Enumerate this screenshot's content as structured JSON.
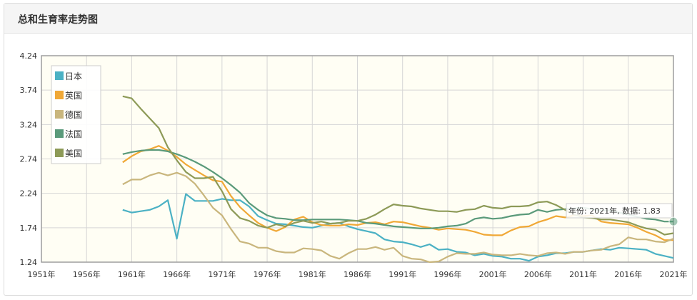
{
  "panel": {
    "title": "总和生育率走势图"
  },
  "chart_data": {
    "type": "line",
    "ylim": [
      1.24,
      4.24
    ],
    "xlim": [
      1951,
      2021
    ],
    "yticks": [
      1.24,
      1.74,
      2.24,
      2.74,
      3.24,
      3.74,
      4.24
    ],
    "xticks": [
      1951,
      1956,
      1961,
      1966,
      1971,
      1976,
      1981,
      1986,
      1991,
      1996,
      2001,
      2006,
      2011,
      2016,
      2021
    ],
    "ytick_labels": [
      "1.24",
      "1.74",
      "2.24",
      "2.74",
      "3.24",
      "3.74",
      "4.24"
    ],
    "xtick_labels": [
      "1951年",
      "1956年",
      "1961年",
      "1966年",
      "1971年",
      "1976年",
      "1981年",
      "1986年",
      "1991年",
      "1996年",
      "2001年",
      "2006年",
      "2011年",
      "2016年",
      "2021年"
    ],
    "grid": true,
    "legend_position": "top-left",
    "series": [
      {
        "name": "日本",
        "color": "#4bb1c4",
        "x": [
          1960,
          1961,
          1962,
          1963,
          1964,
          1965,
          1966,
          1967,
          1968,
          1969,
          1970,
          1971,
          1972,
          1973,
          1974,
          1975,
          1976,
          1977,
          1978,
          1979,
          1980,
          1981,
          1982,
          1983,
          1984,
          1985,
          1986,
          1987,
          1988,
          1989,
          1990,
          1991,
          1992,
          1993,
          1994,
          1995,
          1996,
          1997,
          1998,
          1999,
          2000,
          2001,
          2002,
          2003,
          2004,
          2005,
          2006,
          2007,
          2008,
          2009,
          2010,
          2011,
          2012,
          2013,
          2014,
          2015,
          2016,
          2017,
          2018,
          2019,
          2020,
          2021
        ],
        "values": [
          2.0,
          1.96,
          1.98,
          2.0,
          2.05,
          2.14,
          1.58,
          2.23,
          2.13,
          2.13,
          2.13,
          2.16,
          2.14,
          2.14,
          2.05,
          1.91,
          1.85,
          1.8,
          1.79,
          1.77,
          1.75,
          1.74,
          1.77,
          1.8,
          1.81,
          1.76,
          1.72,
          1.69,
          1.66,
          1.57,
          1.54,
          1.53,
          1.5,
          1.46,
          1.5,
          1.42,
          1.43,
          1.39,
          1.38,
          1.34,
          1.36,
          1.33,
          1.32,
          1.29,
          1.29,
          1.26,
          1.32,
          1.34,
          1.37,
          1.37,
          1.39,
          1.39,
          1.41,
          1.43,
          1.42,
          1.45,
          1.44,
          1.43,
          1.42,
          1.36,
          1.33,
          1.3
        ]
      },
      {
        "name": "英国",
        "color": "#f0a836",
        "x": [
          1960,
          1961,
          1962,
          1963,
          1964,
          1965,
          1966,
          1967,
          1968,
          1969,
          1970,
          1971,
          1972,
          1973,
          1974,
          1975,
          1976,
          1977,
          1978,
          1979,
          1980,
          1981,
          1982,
          1983,
          1984,
          1985,
          1986,
          1987,
          1988,
          1989,
          1990,
          1991,
          1992,
          1993,
          1994,
          1995,
          1996,
          1997,
          1998,
          1999,
          2000,
          2001,
          2002,
          2003,
          2004,
          2005,
          2006,
          2007,
          2008,
          2009,
          2010,
          2011,
          2012,
          2013,
          2014,
          2015,
          2016,
          2017,
          2018,
          2019,
          2020,
          2021
        ],
        "values": [
          2.69,
          2.78,
          2.85,
          2.88,
          2.93,
          2.86,
          2.77,
          2.66,
          2.58,
          2.5,
          2.43,
          2.41,
          2.2,
          2.04,
          1.92,
          1.81,
          1.74,
          1.69,
          1.75,
          1.86,
          1.9,
          1.82,
          1.78,
          1.77,
          1.77,
          1.79,
          1.78,
          1.81,
          1.82,
          1.79,
          1.83,
          1.82,
          1.79,
          1.76,
          1.74,
          1.71,
          1.73,
          1.72,
          1.71,
          1.68,
          1.64,
          1.63,
          1.63,
          1.7,
          1.75,
          1.76,
          1.82,
          1.86,
          1.91,
          1.89,
          1.92,
          1.91,
          1.92,
          1.83,
          1.81,
          1.8,
          1.79,
          1.74,
          1.68,
          1.63,
          1.56,
          1.56
        ]
      },
      {
        "name": "德国",
        "color": "#c9b67d",
        "x": [
          1960,
          1961,
          1962,
          1963,
          1964,
          1965,
          1966,
          1967,
          1968,
          1969,
          1970,
          1971,
          1972,
          1973,
          1974,
          1975,
          1976,
          1977,
          1978,
          1979,
          1980,
          1981,
          1982,
          1983,
          1984,
          1985,
          1986,
          1987,
          1988,
          1989,
          1990,
          1991,
          1992,
          1993,
          1994,
          1995,
          1996,
          1997,
          1998,
          1999,
          2000,
          2001,
          2002,
          2003,
          2004,
          2005,
          2006,
          2007,
          2008,
          2009,
          2010,
          2011,
          2012,
          2013,
          2014,
          2015,
          2016,
          2017,
          2018,
          2019,
          2020,
          2021
        ],
        "values": [
          2.37,
          2.44,
          2.44,
          2.5,
          2.54,
          2.5,
          2.54,
          2.49,
          2.38,
          2.21,
          2.03,
          1.92,
          1.72,
          1.54,
          1.51,
          1.45,
          1.45,
          1.4,
          1.38,
          1.38,
          1.44,
          1.43,
          1.41,
          1.33,
          1.29,
          1.37,
          1.43,
          1.43,
          1.46,
          1.42,
          1.45,
          1.33,
          1.29,
          1.28,
          1.24,
          1.25,
          1.32,
          1.37,
          1.36,
          1.36,
          1.38,
          1.35,
          1.34,
          1.34,
          1.36,
          1.34,
          1.33,
          1.37,
          1.38,
          1.36,
          1.39,
          1.39,
          1.41,
          1.42,
          1.47,
          1.5,
          1.6,
          1.57,
          1.57,
          1.54,
          1.53,
          1.58
        ]
      },
      {
        "name": "法国",
        "color": "#5a9a7a",
        "x": [
          1960,
          1961,
          1962,
          1963,
          1964,
          1965,
          1966,
          1967,
          1968,
          1969,
          1970,
          1971,
          1972,
          1973,
          1974,
          1975,
          1976,
          1977,
          1978,
          1979,
          1980,
          1981,
          1982,
          1983,
          1984,
          1985,
          1986,
          1987,
          1988,
          1989,
          1990,
          1991,
          1992,
          1993,
          1994,
          1995,
          1996,
          1997,
          1998,
          1999,
          2000,
          2001,
          2002,
          2003,
          2004,
          2005,
          2006,
          2007,
          2008,
          2009,
          2010,
          2011,
          2012,
          2013,
          2014,
          2015,
          2016,
          2017,
          2018,
          2019,
          2020,
          2021
        ],
        "values": [
          2.81,
          2.84,
          2.86,
          2.87,
          2.87,
          2.85,
          2.81,
          2.76,
          2.7,
          2.63,
          2.55,
          2.46,
          2.36,
          2.25,
          2.1,
          2.0,
          1.92,
          1.88,
          1.87,
          1.85,
          1.85,
          1.86,
          1.86,
          1.86,
          1.86,
          1.85,
          1.84,
          1.81,
          1.8,
          1.78,
          1.76,
          1.75,
          1.74,
          1.73,
          1.73,
          1.74,
          1.76,
          1.77,
          1.8,
          1.87,
          1.89,
          1.87,
          1.88,
          1.91,
          1.93,
          1.94,
          2.0,
          1.97,
          2.0,
          2.01,
          2.02,
          2.03,
          2.01,
          1.99,
          1.99,
          1.96,
          1.93,
          1.9,
          1.87,
          1.86,
          1.83,
          1.83
        ]
      },
      {
        "name": "美国",
        "color": "#8d9a57",
        "x": [
          1960,
          1961,
          1962,
          1963,
          1964,
          1965,
          1966,
          1967,
          1968,
          1969,
          1970,
          1971,
          1972,
          1973,
          1974,
          1975,
          1976,
          1977,
          1978,
          1979,
          1980,
          1981,
          1982,
          1983,
          1984,
          1985,
          1986,
          1987,
          1988,
          1989,
          1990,
          1991,
          1992,
          1993,
          1994,
          1995,
          1996,
          1997,
          1998,
          1999,
          2000,
          2001,
          2002,
          2003,
          2004,
          2005,
          2006,
          2007,
          2008,
          2009,
          2010,
          2011,
          2012,
          2013,
          2014,
          2015,
          2016,
          2017,
          2018,
          2019,
          2020,
          2021
        ],
        "values": [
          3.65,
          3.62,
          3.47,
          3.33,
          3.19,
          2.91,
          2.72,
          2.55,
          2.46,
          2.46,
          2.48,
          2.27,
          2.01,
          1.88,
          1.84,
          1.77,
          1.74,
          1.79,
          1.76,
          1.81,
          1.84,
          1.81,
          1.83,
          1.8,
          1.81,
          1.84,
          1.84,
          1.87,
          1.93,
          2.01,
          2.08,
          2.06,
          2.05,
          2.02,
          2.0,
          1.98,
          1.98,
          1.97,
          2.0,
          2.01,
          2.06,
          2.03,
          2.02,
          2.05,
          2.05,
          2.06,
          2.11,
          2.12,
          2.07,
          2.0,
          1.93,
          1.89,
          1.88,
          1.86,
          1.86,
          1.84,
          1.82,
          1.77,
          1.73,
          1.71,
          1.64,
          1.66
        ]
      }
    ]
  },
  "tooltip": {
    "text": "年份: 2021年, 数据: 1.83"
  }
}
